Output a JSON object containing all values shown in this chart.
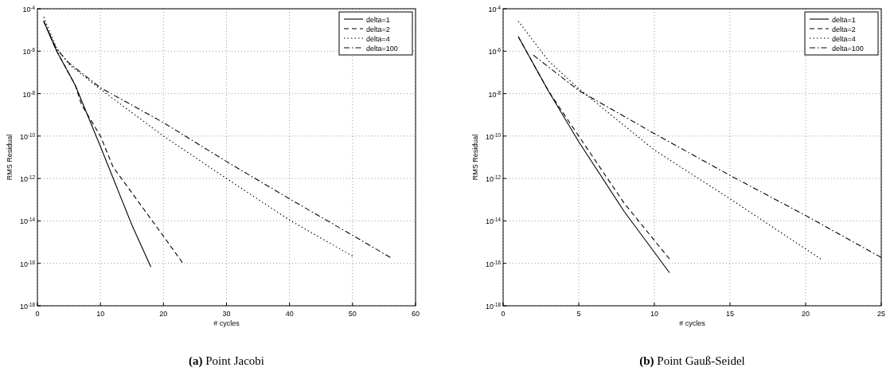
{
  "chart_data": [
    {
      "type": "line",
      "title": "(a) Point Jacobi",
      "xlabel": "# cycles",
      "ylabel": "RMS Residual",
      "log": "y",
      "grid": true,
      "legend": "top right",
      "xlim": [
        0,
        60
      ],
      "xticks": [
        0,
        10,
        20,
        30,
        40,
        50,
        60
      ],
      "ylim": [
        1e-18,
        0.0001
      ],
      "yticks": [
        {
          "value": 0.0001,
          "label": "10$^{-4}$"
        },
        {
          "value": 1e-06,
          "label": "10$^{-6}$"
        },
        {
          "value": 1e-08,
          "label": "10$^{-8}$"
        },
        {
          "value": 1e-10,
          "label": "10$^{-10}$"
        },
        {
          "value": 1e-12,
          "label": "10$^{-12}$"
        },
        {
          "value": 1e-14,
          "label": "10$^{-14}$"
        },
        {
          "value": 1e-16,
          "label": "10$^{-16}$"
        },
        {
          "value": 1e-18,
          "label": "10$^{-18}$"
        }
      ],
      "series": [
        {
          "name": "delta=1",
          "color": "#000000",
          "line_style": "solid",
          "x": [
            1,
            3,
            6,
            10,
            15,
            18
          ],
          "values": [
            2.6e-05,
            1.1e-06,
            2.5e-08,
            3.2e-11,
            6.3e-15,
            6.8e-17
          ]
        },
        {
          "name": "delta=2",
          "color": "#000000",
          "line_style": "dashed",
          "x": [
            1,
            3,
            6,
            7,
            10,
            12,
            20,
            23
          ],
          "values": [
            2.6e-05,
            1.1e-06,
            2.5e-08,
            3e-09,
            1e-10,
            3.5e-12,
            1.9e-15,
            1.1e-16
          ]
        },
        {
          "name": "delta=4",
          "color": "#000000",
          "line_style": "dotted",
          "x": [
            1,
            3,
            5,
            10,
            20,
            30,
            40,
            50
          ],
          "values": [
            4.1e-05,
            1.5e-06,
            2.4e-07,
            1.6e-08,
            1e-10,
            1e-12,
            1.1e-14,
            2.2e-16
          ]
        },
        {
          "name": "delta=100",
          "color": "#000000",
          "line_style": "dashdot",
          "x": [
            1,
            3,
            5,
            10,
            20,
            30,
            40,
            50,
            56
          ],
          "values": [
            2.6e-05,
            1.3e-06,
            2.8e-07,
            1.9e-08,
            4.3e-10,
            6.3e-12,
            1.1e-13,
            2.1e-15,
            1.9e-16
          ]
        }
      ]
    },
    {
      "type": "line",
      "title": "(b) Point Gauß-Seidel",
      "xlabel": "# cycles",
      "ylabel": "RMS Residual",
      "log": "y",
      "grid": true,
      "legend": "top right",
      "xlim": [
        0,
        25
      ],
      "xticks": [
        0,
        5,
        10,
        15,
        20,
        25
      ],
      "ylim": [
        1e-18,
        0.0001
      ],
      "yticks": [
        {
          "value": 0.0001,
          "label": "10$^{-4}$"
        },
        {
          "value": 1e-06,
          "label": "10$^{-6}$"
        },
        {
          "value": 1e-08,
          "label": "10$^{-8}$"
        },
        {
          "value": 1e-10,
          "label": "10$^{-10}$"
        },
        {
          "value": 1e-12,
          "label": "10$^{-12}$"
        },
        {
          "value": 1e-14,
          "label": "10$^{-14}$"
        },
        {
          "value": 1e-16,
          "label": "10$^{-16}$"
        },
        {
          "value": 1e-18,
          "label": "10$^{-18}$"
        }
      ],
      "series": [
        {
          "name": "delta=1",
          "color": "#000000",
          "line_style": "solid",
          "x": [
            1,
            3,
            5,
            8,
            11
          ],
          "values": [
            4.9e-06,
            1.3e-08,
            5.4e-11,
            2.8e-14,
            3.6e-17
          ]
        },
        {
          "name": "delta=2",
          "color": "#000000",
          "line_style": "dashed",
          "x": [
            1,
            3,
            5,
            8,
            11
          ],
          "values": [
            4.9e-06,
            1.3e-08,
            1e-10,
            6.9e-14,
            1.6e-16
          ]
        },
        {
          "name": "delta=4",
          "color": "#000000",
          "line_style": "dotted",
          "x": [
            1,
            3,
            5,
            10,
            15,
            21
          ],
          "values": [
            2.6e-05,
            3.5e-07,
            1.7e-08,
            2.2e-11,
            1.1e-13,
            1.6e-16
          ]
        },
        {
          "name": "delta=100",
          "color": "#000000",
          "line_style": "dashdot",
          "x": [
            2,
            5,
            10,
            15,
            20,
            25
          ],
          "values": [
            6.5e-07,
            1.4e-08,
            1.3e-10,
            1.4e-12,
            1.8e-14,
            1.9e-16
          ]
        }
      ]
    }
  ]
}
